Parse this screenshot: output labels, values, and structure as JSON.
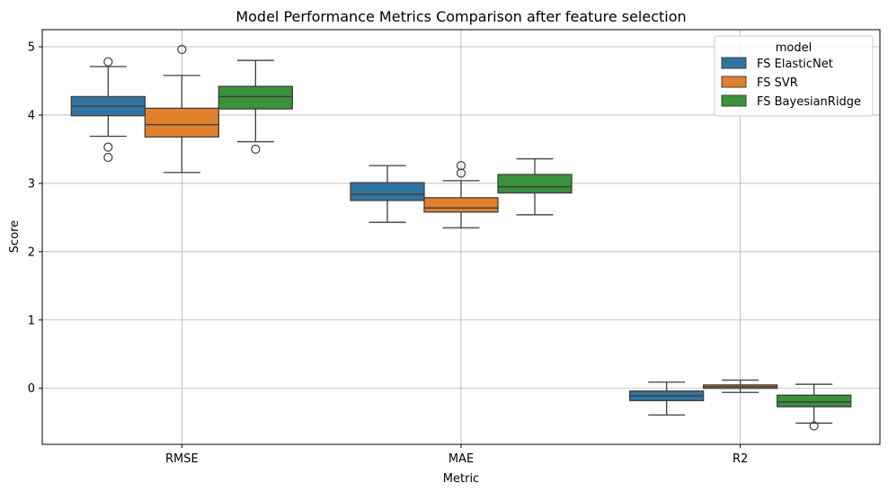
{
  "chart_data": {
    "type": "box",
    "title": "Model Performance Metrics Comparison after feature selection",
    "xlabel": "Metric",
    "ylabel": "Score",
    "categories": [
      "RMSE",
      "MAE",
      "R2"
    ],
    "ylim": [
      -0.82,
      5.25
    ],
    "yticks": [
      0,
      1,
      2,
      3,
      4,
      5
    ],
    "grid": true,
    "legend": {
      "title": "model",
      "placement": "top-right"
    },
    "series": [
      {
        "name": "FS ElasticNet",
        "color": "#3274a1",
        "boxes": [
          {
            "whislo": 3.69,
            "q1": 3.99,
            "med": 4.13,
            "q3": 4.27,
            "whishi": 4.71,
            "fliers": [
              4.78,
              3.53,
              3.38
            ]
          },
          {
            "whislo": 2.43,
            "q1": 2.75,
            "med": 2.84,
            "q3": 3.01,
            "whishi": 3.26,
            "fliers": []
          },
          {
            "whislo": -0.39,
            "q1": -0.18,
            "med": -0.11,
            "q3": -0.04,
            "whishi": 0.09,
            "fliers": []
          }
        ]
      },
      {
        "name": "FS SVR",
        "color": "#e1812c",
        "boxes": [
          {
            "whislo": 3.16,
            "q1": 3.68,
            "med": 3.86,
            "q3": 4.1,
            "whishi": 4.58,
            "fliers": [
              4.96
            ]
          },
          {
            "whislo": 2.35,
            "q1": 2.58,
            "med": 2.64,
            "q3": 2.79,
            "whishi": 3.04,
            "fliers": [
              3.26,
              3.15
            ]
          },
          {
            "whislo": -0.06,
            "q1": 0.0,
            "med": 0.025,
            "q3": 0.05,
            "whishi": 0.12,
            "fliers": []
          }
        ]
      },
      {
        "name": "FS BayesianRidge",
        "color": "#3a923a",
        "boxes": [
          {
            "whislo": 3.61,
            "q1": 4.09,
            "med": 4.27,
            "q3": 4.42,
            "whishi": 4.8,
            "fliers": [
              3.5
            ]
          },
          {
            "whislo": 2.54,
            "q1": 2.86,
            "med": 2.95,
            "q3": 3.13,
            "whishi": 3.36,
            "fliers": []
          },
          {
            "whislo": -0.51,
            "q1": -0.27,
            "med": -0.2,
            "q3": -0.1,
            "whishi": 0.06,
            "fliers": [
              -0.55
            ]
          }
        ]
      }
    ]
  }
}
